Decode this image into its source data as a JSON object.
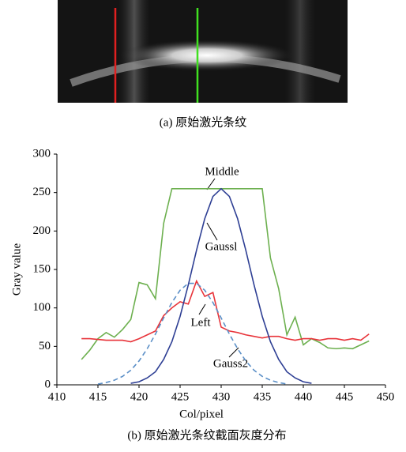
{
  "figure": {
    "caption_a": "(a) 原始激光条纹",
    "caption_b": "(b) 原始激光条纹截面灰度分布"
  },
  "chart_data": {
    "type": "line",
    "xlabel": "Col/pixel",
    "ylabel": "Gray value",
    "xlim": [
      410,
      450
    ],
    "xticks": [
      410,
      415,
      420,
      425,
      430,
      435,
      440,
      445,
      450
    ],
    "ylim": [
      0,
      300
    ],
    "yticks": [
      0,
      50,
      100,
      150,
      200,
      250,
      300
    ],
    "annotations": [
      "Middle",
      "Gaussl",
      "Left",
      "Gauss2"
    ],
    "series": [
      {
        "color": "#6db04f",
        "dash": false,
        "x": [
          413,
          414,
          415,
          416,
          417,
          418,
          419,
          420,
          421,
          422,
          423,
          424,
          425,
          426,
          427,
          428,
          429,
          430,
          431,
          432,
          433,
          434,
          435,
          436,
          437,
          438,
          439,
          440,
          441,
          442,
          443,
          444,
          445,
          446,
          447,
          448
        ],
        "values": [
          33,
          45,
          60,
          68,
          62,
          72,
          85,
          133,
          130,
          112,
          210,
          255,
          255,
          255,
          255,
          255,
          255,
          255,
          255,
          255,
          255,
          255,
          255,
          165,
          125,
          65,
          88,
          52,
          60,
          55,
          48,
          47,
          48,
          47,
          52,
          57
        ]
      },
      {
        "color": "#e8343a",
        "dash": false,
        "x": [
          413,
          414,
          415,
          416,
          417,
          418,
          419,
          420,
          421,
          422,
          423,
          424,
          425,
          426,
          427,
          428,
          429,
          430,
          431,
          432,
          433,
          434,
          435,
          436,
          437,
          438,
          439,
          440,
          441,
          442,
          443,
          444,
          445,
          446,
          447,
          448
        ],
        "values": [
          60,
          60,
          59,
          58,
          58,
          58,
          56,
          60,
          65,
          70,
          90,
          100,
          108,
          105,
          135,
          115,
          120,
          75,
          70,
          68,
          65,
          63,
          61,
          63,
          63,
          60,
          58,
          60,
          60,
          58,
          60,
          60,
          58,
          60,
          58,
          66
        ]
      },
      {
        "color": "#2e3f94",
        "dash": false,
        "x": [
          419,
          420,
          421,
          422,
          423,
          424,
          425,
          426,
          427,
          428,
          429,
          430,
          431,
          432,
          433,
          434,
          435,
          436,
          437,
          438,
          439,
          440,
          441
        ],
        "values": [
          2,
          4,
          9,
          17,
          33,
          56,
          89,
          130,
          175,
          216,
          245,
          255,
          245,
          216,
          175,
          130,
          89,
          56,
          33,
          17,
          9,
          4,
          2
        ]
      },
      {
        "color": "#5b8fc7",
        "dash": true,
        "x": [
          415,
          416,
          417,
          418,
          419,
          420,
          421,
          422,
          423,
          424,
          425,
          426,
          427,
          428,
          429,
          430,
          431,
          432,
          433,
          434,
          435,
          436,
          437,
          438
        ],
        "values": [
          1,
          3,
          6,
          11,
          19,
          31,
          47,
          66,
          87,
          107,
          123,
          132,
          132,
          123,
          107,
          87,
          66,
          47,
          31,
          19,
          11,
          6,
          3,
          1
        ]
      }
    ]
  }
}
